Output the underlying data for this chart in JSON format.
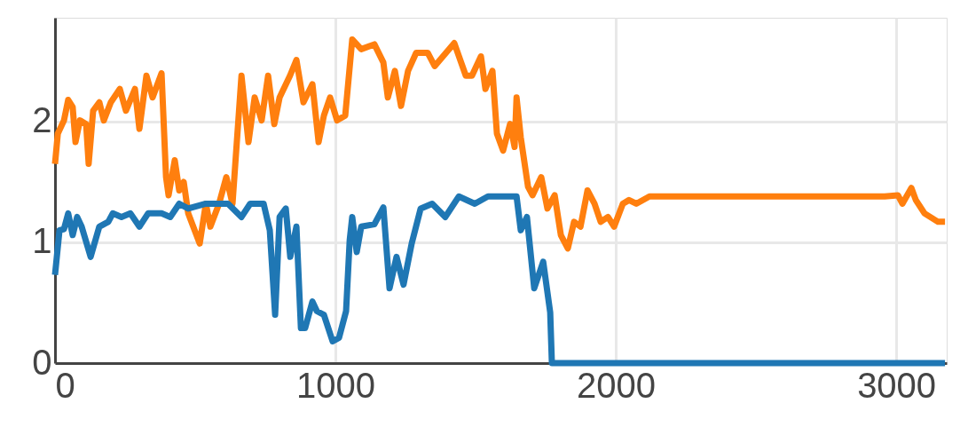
{
  "chart_data": {
    "type": "line",
    "xlim": [
      0,
      3180
    ],
    "ylim": [
      0,
      2.86
    ],
    "xticks": [
      0,
      1000,
      2000,
      3000
    ],
    "yticks": [
      0,
      1,
      2
    ],
    "grid": true,
    "marker": "none",
    "line_style": "solid",
    "series": [
      {
        "color": "#ff7f0e",
        "x": [
          0,
          10,
          32,
          47,
          63,
          73,
          89,
          111,
          120,
          136,
          158,
          174,
          199,
          231,
          253,
          285,
          301,
          326,
          348,
          380,
          396,
          405,
          427,
          443,
          459,
          475,
          516,
          538,
          554,
          585,
          611,
          633,
          665,
          690,
          712,
          737,
          760,
          782,
          801,
          838,
          861,
          886,
          918,
          940,
          959,
          981,
          1006,
          1035,
          1060,
          1092,
          1139,
          1171,
          1187,
          1212,
          1234,
          1259,
          1288,
          1329,
          1354,
          1424,
          1465,
          1487,
          1519,
          1535,
          1560,
          1576,
          1598,
          1623,
          1639,
          1646,
          1661,
          1687,
          1703,
          1734,
          1756,
          1782,
          1804,
          1829,
          1851,
          1874,
          1899,
          1924,
          1946,
          1972,
          1994,
          2025,
          2047,
          2073,
          2120,
          2326,
          2642,
          2959,
          3006,
          3022,
          3054,
          3070,
          3101,
          3149,
          3174
        ],
        "values": [
          1.65,
          1.9,
          2.01,
          2.18,
          2.12,
          1.83,
          2.01,
          1.98,
          1.65,
          2.09,
          2.16,
          2.01,
          2.16,
          2.27,
          2.09,
          2.27,
          1.94,
          2.38,
          2.2,
          2.4,
          1.54,
          1.39,
          1.68,
          1.43,
          1.5,
          1.24,
          0.99,
          1.32,
          1.13,
          1.32,
          1.54,
          1.32,
          2.38,
          1.83,
          2.2,
          2.01,
          2.38,
          1.98,
          2.2,
          2.38,
          2.51,
          2.16,
          2.31,
          1.83,
          2.05,
          2.2,
          2.01,
          2.05,
          2.68,
          2.6,
          2.64,
          2.49,
          2.2,
          2.42,
          2.13,
          2.42,
          2.57,
          2.57,
          2.46,
          2.65,
          2.38,
          2.38,
          2.54,
          2.27,
          2.42,
          1.9,
          1.76,
          1.98,
          1.79,
          2.2,
          1.87,
          1.46,
          1.39,
          1.54,
          1.28,
          1.39,
          1.06,
          0.95,
          1.17,
          1.13,
          1.43,
          1.32,
          1.17,
          1.21,
          1.13,
          1.32,
          1.35,
          1.32,
          1.38,
          1.38,
          1.38,
          1.38,
          1.39,
          1.32,
          1.45,
          1.35,
          1.24,
          1.17,
          1.17
        ]
      },
      {
        "color": "#1f77b4",
        "x": [
          0,
          16,
          32,
          47,
          63,
          79,
          95,
          127,
          158,
          190,
          206,
          237,
          269,
          301,
          332,
          380,
          411,
          443,
          475,
          538,
          617,
          665,
          696,
          744,
          766,
          785,
          801,
          823,
          839,
          861,
          877,
          892,
          918,
          934,
          959,
          990,
          1013,
          1038,
          1051,
          1060,
          1076,
          1092,
          1139,
          1171,
          1193,
          1218,
          1243,
          1272,
          1304,
          1345,
          1392,
          1440,
          1497,
          1544,
          1582,
          1646,
          1661,
          1683,
          1709,
          1741,
          1766,
          1772,
          3174
        ],
        "values": [
          0.73,
          1.1,
          1.11,
          1.24,
          1.06,
          1.21,
          1.13,
          0.88,
          1.13,
          1.17,
          1.24,
          1.21,
          1.24,
          1.13,
          1.24,
          1.24,
          1.21,
          1.32,
          1.28,
          1.32,
          1.32,
          1.21,
          1.32,
          1.32,
          1.1,
          0.4,
          1.21,
          1.28,
          0.88,
          1.13,
          0.29,
          0.29,
          0.51,
          0.43,
          0.4,
          0.18,
          0.21,
          0.43,
          1.02,
          1.21,
          0.92,
          1.13,
          1.15,
          1.29,
          0.62,
          0.88,
          0.65,
          0.99,
          1.28,
          1.32,
          1.21,
          1.38,
          1.32,
          1.38,
          1.38,
          1.38,
          1.1,
          1.21,
          0.62,
          0.84,
          0.42,
          0,
          0
        ]
      }
    ]
  }
}
